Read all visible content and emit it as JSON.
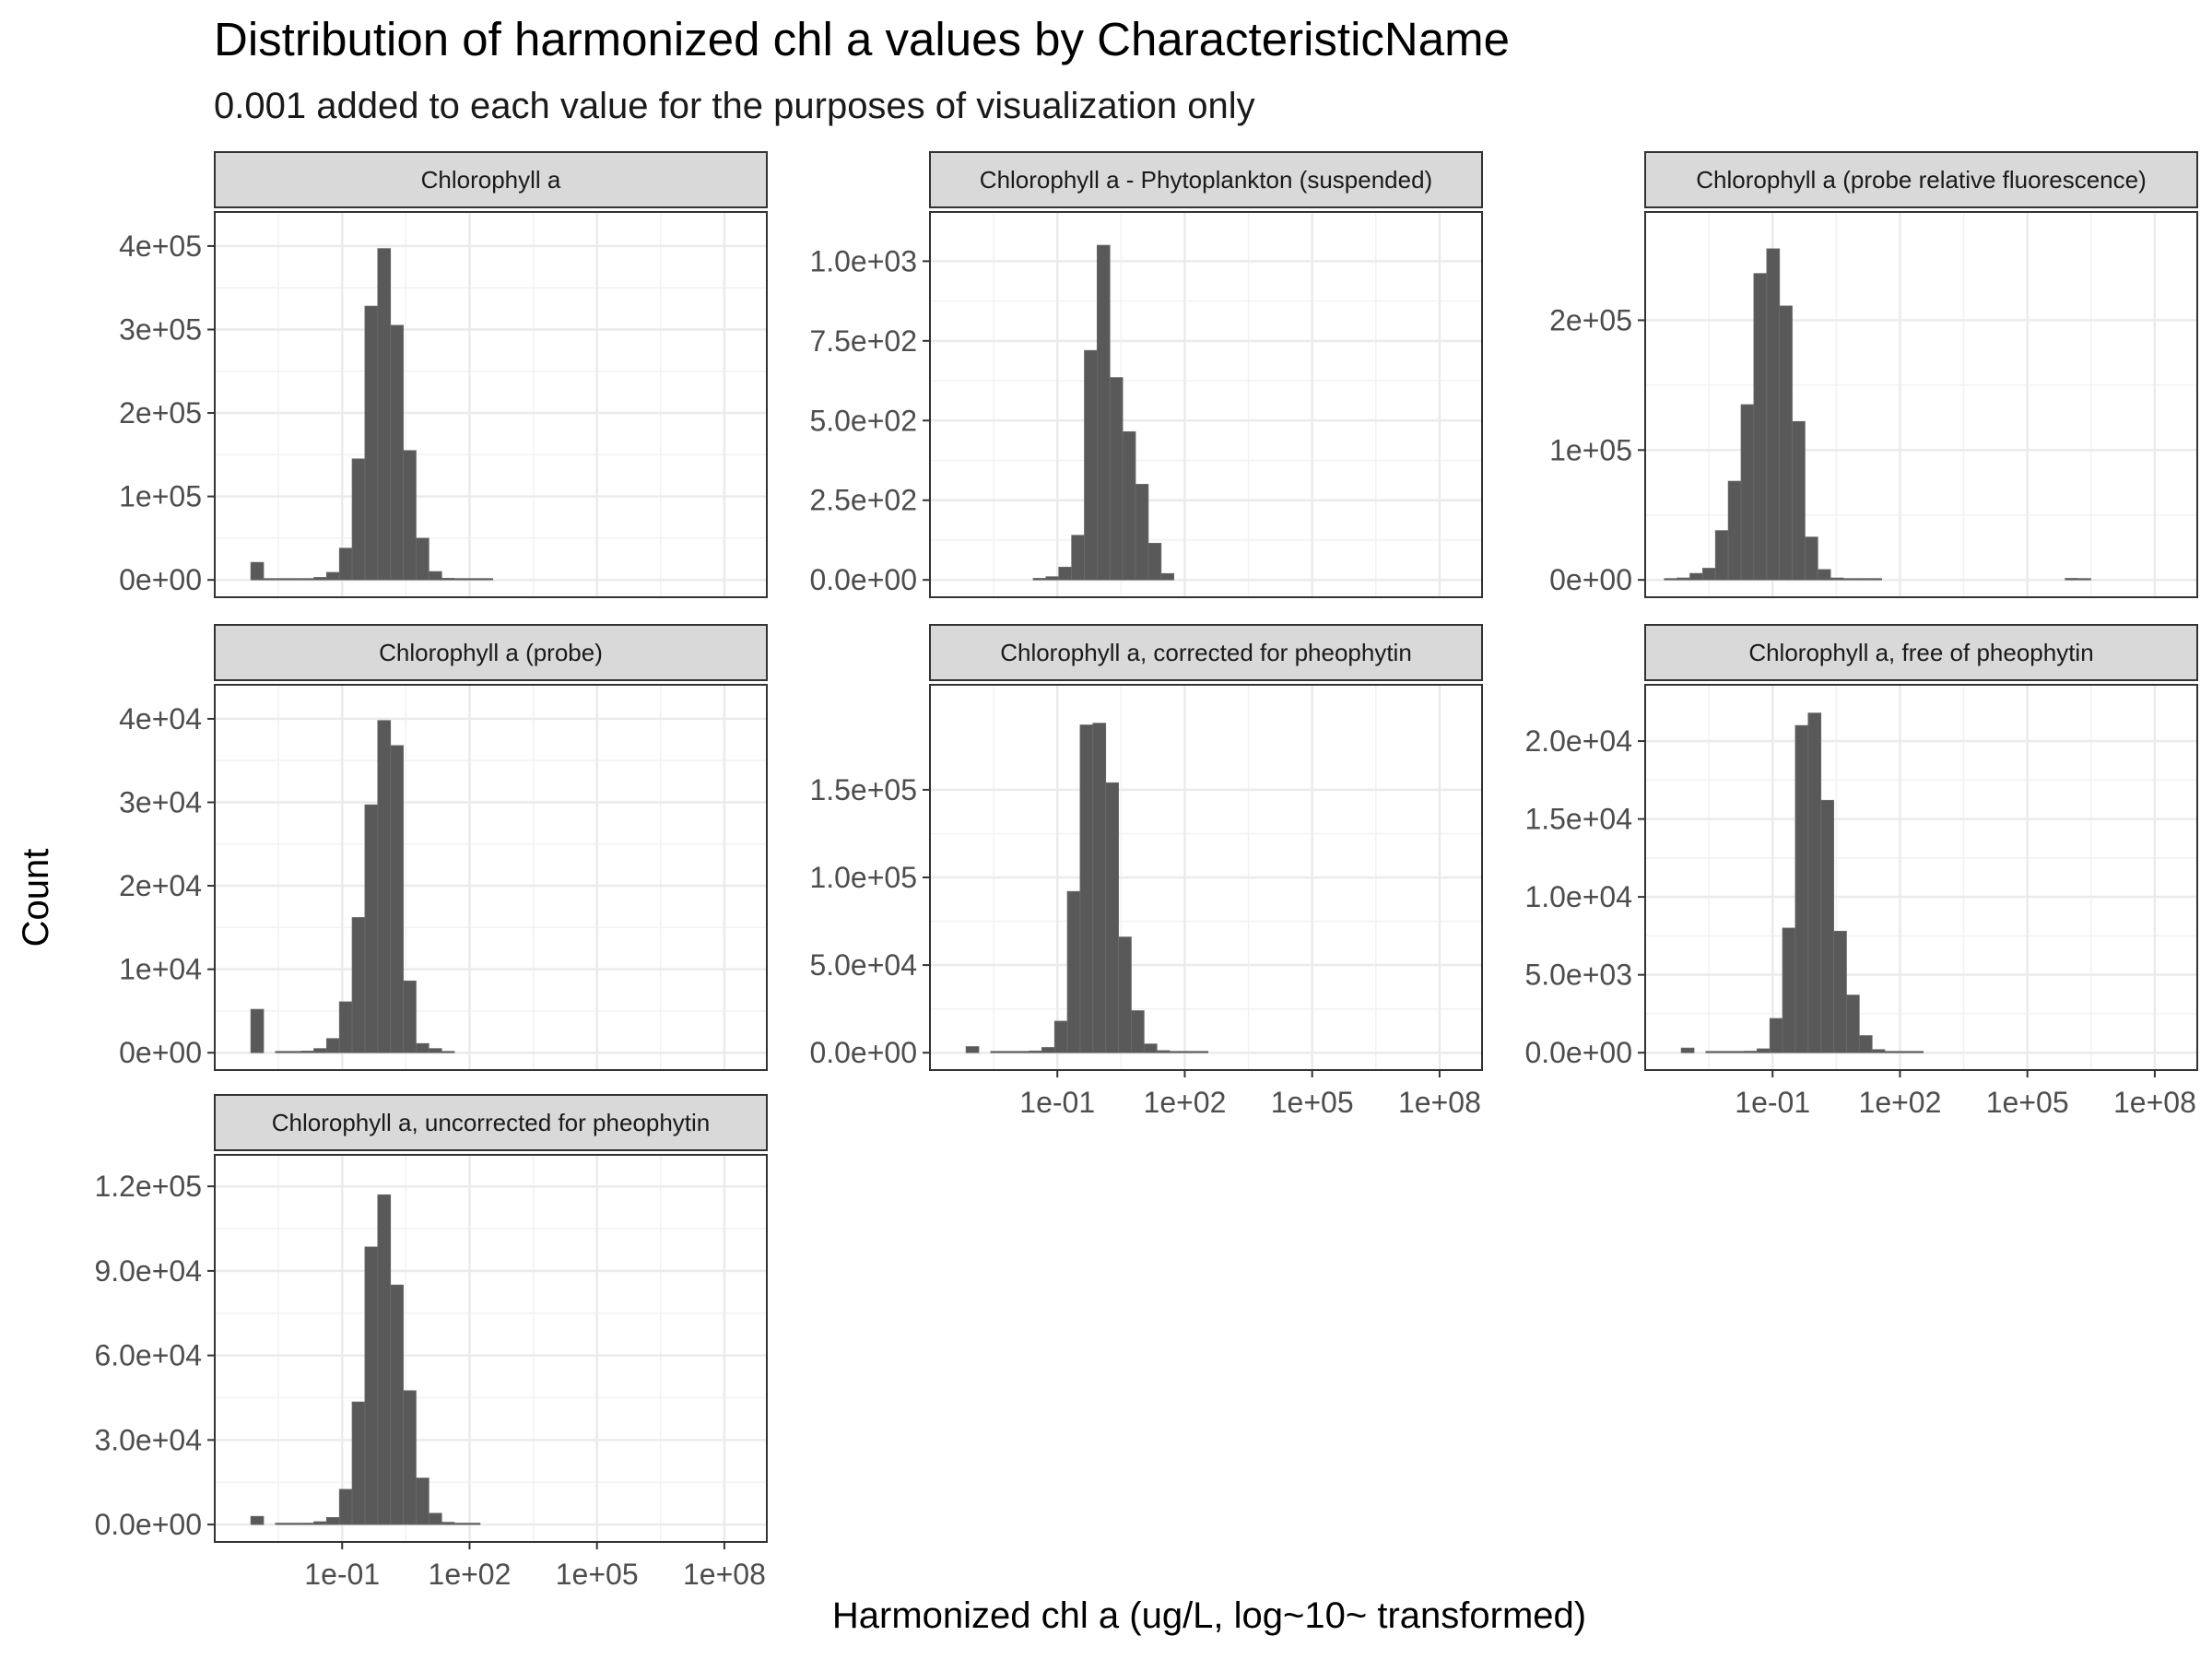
{
  "chart_data": {
    "type": "bar",
    "title": "Distribution of harmonized chl a values by CharacteristicName",
    "subtitle": "0.001 added to each value for the purposes of visualization only",
    "xlabel": "Harmonized chl a (ug/L, log~10~ transformed)",
    "ylabel": "Count",
    "x_scale": "log10",
    "xlim": [
      0.0001,
      1000000000
    ],
    "x_ticks": [
      {
        "value": 0.1,
        "label": "1e-01"
      },
      {
        "value": 100,
        "label": "1e+02"
      },
      {
        "value": 100000,
        "label": "1e+05"
      },
      {
        "value": 100000000,
        "label": "1e+08"
      }
    ],
    "grid": true,
    "facets": [
      {
        "name": "Chlorophyll a",
        "ylim": [
          0,
          420000
        ],
        "y_ticks": [
          {
            "value": 0,
            "label": "0e+00"
          },
          {
            "value": 100000,
            "label": "1e+05"
          },
          {
            "value": 200000,
            "label": "2e+05"
          },
          {
            "value": 300000,
            "label": "3e+05"
          },
          {
            "value": 400000,
            "label": "4e+05"
          }
        ],
        "bars": [
          {
            "x": 0.001,
            "count": 21000
          },
          {
            "x": 0.0019,
            "count": 0
          },
          {
            "x": 0.0038,
            "count": 500
          },
          {
            "x": 0.0076,
            "count": 800
          },
          {
            "x": 0.0152,
            "count": 1500
          },
          {
            "x": 0.0304,
            "count": 3000
          },
          {
            "x": 0.0608,
            "count": 9000
          },
          {
            "x": 0.122,
            "count": 38000
          },
          {
            "x": 0.243,
            "count": 145000
          },
          {
            "x": 0.486,
            "count": 328000
          },
          {
            "x": 0.973,
            "count": 397000
          },
          {
            "x": 1.95,
            "count": 305000
          },
          {
            "x": 3.89,
            "count": 155000
          },
          {
            "x": 7.78,
            "count": 50000
          },
          {
            "x": 15.6,
            "count": 10000
          },
          {
            "x": 31.1,
            "count": 2000
          },
          {
            "x": 62.3,
            "count": 600
          },
          {
            "x": 125,
            "count": 300
          },
          {
            "x": 249,
            "count": 150
          }
        ]
      },
      {
        "name": "Chlorophyll a - Phytoplankton (suspended)",
        "ylim": [
          0,
          1100
        ],
        "y_ticks": [
          {
            "value": 0,
            "label": "0.0e+00"
          },
          {
            "value": 250,
            "label": "2.5e+02"
          },
          {
            "value": 500,
            "label": "5.0e+02"
          },
          {
            "value": 750,
            "label": "7.5e+02"
          },
          {
            "value": 1000,
            "label": "1.0e+03"
          }
        ],
        "bars": [
          {
            "x": 0.0382,
            "count": 5
          },
          {
            "x": 0.0764,
            "count": 10
          },
          {
            "x": 0.153,
            "count": 40
          },
          {
            "x": 0.306,
            "count": 140
          },
          {
            "x": 0.611,
            "count": 720
          },
          {
            "x": 1.22,
            "count": 1050
          },
          {
            "x": 2.44,
            "count": 635
          },
          {
            "x": 4.89,
            "count": 465
          },
          {
            "x": 9.78,
            "count": 300
          },
          {
            "x": 19.6,
            "count": 115
          },
          {
            "x": 39.1,
            "count": 20
          }
        ]
      },
      {
        "name": "Chlorophyll a (probe relative fluorescence)",
        "ylim": [
          0,
          270000
        ],
        "y_ticks": [
          {
            "value": 0,
            "label": "0e+00"
          },
          {
            "value": 100000,
            "label": "1e+05"
          },
          {
            "value": 200000,
            "label": "2e+05"
          }
        ],
        "bars": [
          {
            "x": 0.0004,
            "count": 500
          },
          {
            "x": 0.0008,
            "count": 1500
          },
          {
            "x": 0.0016,
            "count": 5000
          },
          {
            "x": 0.0032,
            "count": 9000
          },
          {
            "x": 0.0064,
            "count": 38000
          },
          {
            "x": 0.0128,
            "count": 76000
          },
          {
            "x": 0.0256,
            "count": 135000
          },
          {
            "x": 0.0512,
            "count": 236000
          },
          {
            "x": 0.103,
            "count": 255000
          },
          {
            "x": 0.205,
            "count": 211000
          },
          {
            "x": 0.41,
            "count": 122000
          },
          {
            "x": 0.82,
            "count": 33000
          },
          {
            "x": 1.64,
            "count": 8000
          },
          {
            "x": 3.28,
            "count": 1500
          },
          {
            "x": 6.56,
            "count": 400
          },
          {
            "x": 13.1,
            "count": 150
          },
          {
            "x": 26.2,
            "count": 100
          },
          {
            "x": 1100000,
            "count": 1200
          },
          {
            "x": 2200000,
            "count": 800
          }
        ]
      },
      {
        "name": "Chlorophyll a (probe)",
        "ylim": [
          0,
          42000
        ],
        "y_ticks": [
          {
            "value": 0,
            "label": "0e+00"
          },
          {
            "value": 10000,
            "label": "1e+04"
          },
          {
            "value": 20000,
            "label": "2e+04"
          },
          {
            "value": 30000,
            "label": "3e+04"
          },
          {
            "value": 40000,
            "label": "4e+04"
          }
        ],
        "bars": [
          {
            "x": 0.001,
            "count": 5200
          },
          {
            "x": 0.0038,
            "count": 50
          },
          {
            "x": 0.0076,
            "count": 80
          },
          {
            "x": 0.0152,
            "count": 200
          },
          {
            "x": 0.0304,
            "count": 500
          },
          {
            "x": 0.0608,
            "count": 1700
          },
          {
            "x": 0.122,
            "count": 6100
          },
          {
            "x": 0.243,
            "count": 16200
          },
          {
            "x": 0.486,
            "count": 29700
          },
          {
            "x": 0.973,
            "count": 39800
          },
          {
            "x": 1.95,
            "count": 36800
          },
          {
            "x": 3.89,
            "count": 8600
          },
          {
            "x": 7.78,
            "count": 1100
          },
          {
            "x": 15.6,
            "count": 500
          },
          {
            "x": 31.1,
            "count": 150
          }
        ]
      },
      {
        "name": "Chlorophyll a, corrected for pheophytin",
        "ylim": [
          0,
          200000
        ],
        "y_ticks": [
          {
            "value": 0,
            "label": "0.0e+00"
          },
          {
            "value": 50000,
            "label": "5.0e+04"
          },
          {
            "value": 100000,
            "label": "1.0e+05"
          },
          {
            "value": 150000,
            "label": "1.5e+05"
          }
        ],
        "bars": [
          {
            "x": 0.001,
            "count": 3500
          },
          {
            "x": 0.0038,
            "count": 200
          },
          {
            "x": 0.0076,
            "count": 300
          },
          {
            "x": 0.0152,
            "count": 500
          },
          {
            "x": 0.0304,
            "count": 1000
          },
          {
            "x": 0.0608,
            "count": 3000
          },
          {
            "x": 0.122,
            "count": 18000
          },
          {
            "x": 0.243,
            "count": 92000
          },
          {
            "x": 0.486,
            "count": 187000
          },
          {
            "x": 0.973,
            "count": 188000
          },
          {
            "x": 1.95,
            "count": 154000
          },
          {
            "x": 3.89,
            "count": 66000
          },
          {
            "x": 7.78,
            "count": 24000
          },
          {
            "x": 15.6,
            "count": 5000
          },
          {
            "x": 31.1,
            "count": 1200
          },
          {
            "x": 62.3,
            "count": 500
          },
          {
            "x": 125,
            "count": 300
          },
          {
            "x": 249,
            "count": 200
          }
        ]
      },
      {
        "name": "Chlorophyll a, free of pheophytin",
        "ylim": [
          0,
          22500
        ],
        "y_ticks": [
          {
            "value": 0,
            "label": "0.0e+00"
          },
          {
            "value": 5000,
            "label": "5.0e+03"
          },
          {
            "value": 10000,
            "label": "1.0e+04"
          },
          {
            "value": 15000,
            "label": "1.5e+04"
          },
          {
            "value": 20000,
            "label": "2.0e+04"
          }
        ],
        "bars": [
          {
            "x": 0.001,
            "count": 300
          },
          {
            "x": 0.0038,
            "count": 40
          },
          {
            "x": 0.0076,
            "count": 60
          },
          {
            "x": 0.0152,
            "count": 80
          },
          {
            "x": 0.0304,
            "count": 100
          },
          {
            "x": 0.0608,
            "count": 250
          },
          {
            "x": 0.122,
            "count": 2200
          },
          {
            "x": 0.243,
            "count": 8000
          },
          {
            "x": 0.486,
            "count": 21000
          },
          {
            "x": 0.973,
            "count": 21800
          },
          {
            "x": 1.95,
            "count": 16200
          },
          {
            "x": 3.89,
            "count": 7800
          },
          {
            "x": 7.78,
            "count": 3700
          },
          {
            "x": 15.6,
            "count": 1100
          },
          {
            "x": 31.1,
            "count": 200
          },
          {
            "x": 62.3,
            "count": 50
          },
          {
            "x": 125,
            "count": 30
          },
          {
            "x": 249,
            "count": 20
          }
        ]
      },
      {
        "name": "Chlorophyll a, uncorrected for pheophytin",
        "ylim": [
          0,
          125000
        ],
        "y_ticks": [
          {
            "value": 0,
            "label": "0.0e+00"
          },
          {
            "value": 30000,
            "label": "3.0e+04"
          },
          {
            "value": 60000,
            "label": "6.0e+04"
          },
          {
            "value": 90000,
            "label": "9.0e+04"
          },
          {
            "value": 120000,
            "label": "1.2e+05"
          }
        ],
        "bars": [
          {
            "x": 0.001,
            "count": 2900
          },
          {
            "x": 0.0038,
            "count": 200
          },
          {
            "x": 0.0076,
            "count": 300
          },
          {
            "x": 0.0152,
            "count": 500
          },
          {
            "x": 0.0304,
            "count": 1000
          },
          {
            "x": 0.0608,
            "count": 2500
          },
          {
            "x": 0.122,
            "count": 12500
          },
          {
            "x": 0.243,
            "count": 43500
          },
          {
            "x": 0.486,
            "count": 98500
          },
          {
            "x": 0.973,
            "count": 117000
          },
          {
            "x": 1.95,
            "count": 85000
          },
          {
            "x": 3.89,
            "count": 47500
          },
          {
            "x": 7.78,
            "count": 16500
          },
          {
            "x": 15.6,
            "count": 4000
          },
          {
            "x": 31.1,
            "count": 800
          },
          {
            "x": 62.3,
            "count": 300
          },
          {
            "x": 125,
            "count": 150
          }
        ]
      }
    ]
  }
}
